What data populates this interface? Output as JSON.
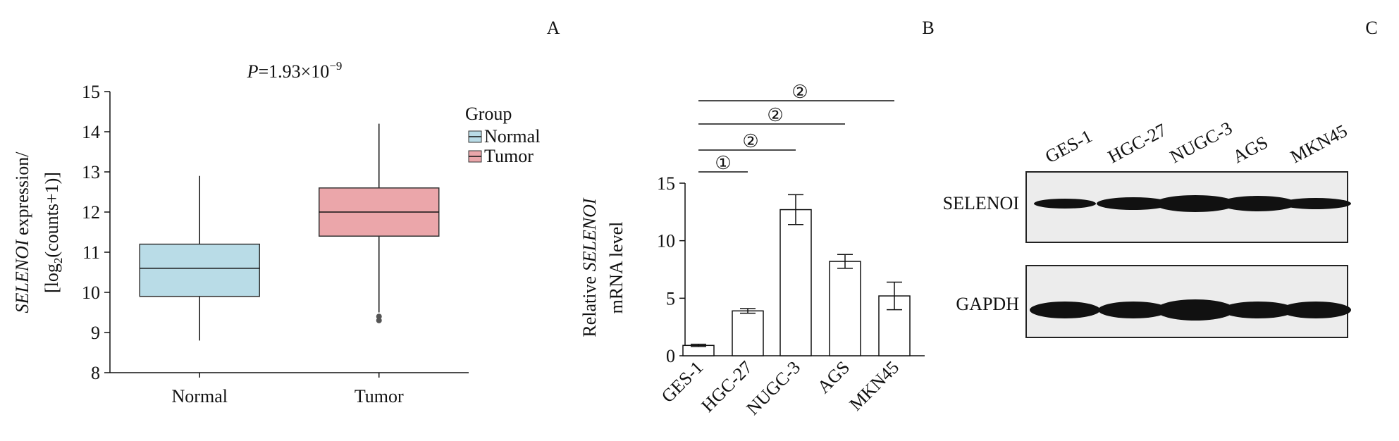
{
  "chart_data": [
    {
      "type": "box",
      "panel": "A",
      "title_parts": [
        "P",
        "=1.93×10",
        "−9"
      ],
      "y_label_parts": [
        "SELENOI",
        " expression/",
        "[log",
        "2",
        "(counts+1)]"
      ],
      "legend_title": "Group",
      "legend": "right",
      "categories": [
        "Normal",
        "Tumor"
      ],
      "boxes": [
        {
          "name": "Normal",
          "color": "#b9dce7",
          "whisker_low": 8.8,
          "q1": 9.9,
          "median": 10.6,
          "q3": 11.2,
          "whisker_high": 12.9,
          "outliers": []
        },
        {
          "name": "Tumor",
          "color": "#eba6aa",
          "whisker_low": 9.5,
          "q1": 11.4,
          "median": 12.0,
          "q3": 12.6,
          "whisker_high": 14.2,
          "outliers": [
            9.4,
            9.3
          ]
        }
      ],
      "ylim": [
        8,
        15
      ],
      "yticks": [
        8,
        9,
        10,
        11,
        12,
        13,
        14,
        15
      ]
    },
    {
      "type": "bar",
      "panel": "B",
      "y_label_parts": [
        "Relative ",
        "SELENOI",
        "mRNA level"
      ],
      "categories": [
        "GES-1",
        "HGC-27",
        "NUGC-3",
        "AGS",
        "MKN45"
      ],
      "values": [
        0.9,
        3.9,
        12.7,
        8.2,
        5.2
      ],
      "errors": [
        0.1,
        0.2,
        1.3,
        0.6,
        1.2
      ],
      "color": "#ffffff",
      "comparisons": [
        {
          "from": "GES-1",
          "to": "HGC-27",
          "label": "①"
        },
        {
          "from": "GES-1",
          "to": "NUGC-3",
          "label": "②"
        },
        {
          "from": "GES-1",
          "to": "AGS",
          "label": "②"
        },
        {
          "from": "GES-1",
          "to": "MKN45",
          "label": "②"
        }
      ],
      "ylim": [
        0,
        15
      ],
      "yticks": [
        0,
        5,
        10,
        15
      ]
    },
    {
      "type": "blot",
      "panel": "C",
      "lanes": [
        "GES-1",
        "HGC-27",
        "NUGC-3",
        "AGS",
        "MKN45"
      ],
      "rows": [
        "SELENOI",
        "GAPDH"
      ]
    }
  ]
}
